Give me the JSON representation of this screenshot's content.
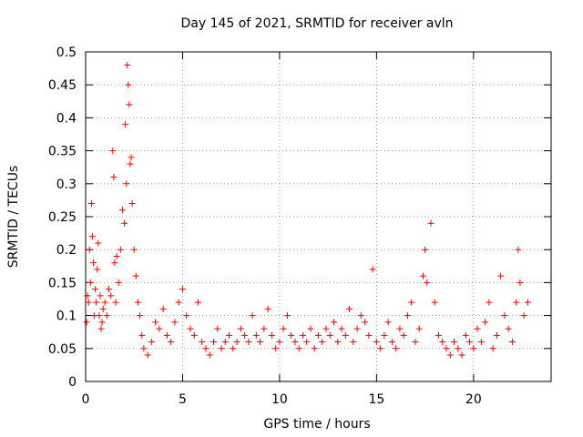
{
  "chart_data": {
    "type": "scatter",
    "title": "Day 145 of 2021, SRMTID for receiver avln",
    "xlabel": "GPS time / hours",
    "ylabel": "SRMTID / TECUs",
    "xlim": [
      0,
      24
    ],
    "ylim": [
      0,
      0.5
    ],
    "xticks": [
      0,
      5,
      10,
      15,
      20
    ],
    "xtick_labels": [
      "0",
      "5",
      "10",
      "15",
      "20"
    ],
    "yticks": [
      0,
      0.05,
      0.1,
      0.15,
      0.2,
      0.25,
      0.3,
      0.35,
      0.4,
      0.45,
      0.5
    ],
    "ytick_labels": [
      "0",
      "0.05",
      "0.1",
      "0.15",
      "0.2",
      "0.25",
      "0.3",
      "0.35",
      "0.4",
      "0.45",
      "0.5"
    ],
    "grid": true,
    "marker": "+",
    "series": [
      {
        "name": "SRMTID",
        "color": "#ff0000",
        "x": [
          0.05,
          0.1,
          0.15,
          0.2,
          0.25,
          0.3,
          0.35,
          0.4,
          0.45,
          0.5,
          0.55,
          0.6,
          0.65,
          0.7,
          0.75,
          0.8,
          0.85,
          0.9,
          1.0,
          1.1,
          1.2,
          1.3,
          1.4,
          1.45,
          1.5,
          1.55,
          1.6,
          1.7,
          1.8,
          1.9,
          2.0,
          2.05,
          2.1,
          2.15,
          2.2,
          2.25,
          2.3,
          2.35,
          2.4,
          2.5,
          2.6,
          2.7,
          2.8,
          2.9,
          3.0,
          3.2,
          3.4,
          3.6,
          3.8,
          4.0,
          4.2,
          4.4,
          4.6,
          4.8,
          5.0,
          5.2,
          5.4,
          5.6,
          5.8,
          6.0,
          6.2,
          6.4,
          6.6,
          6.8,
          7.0,
          7.2,
          7.4,
          7.6,
          7.8,
          8.0,
          8.2,
          8.4,
          8.6,
          8.8,
          9.0,
          9.2,
          9.4,
          9.6,
          9.8,
          10.0,
          10.2,
          10.4,
          10.6,
          10.8,
          11.0,
          11.2,
          11.4,
          11.6,
          11.8,
          12.0,
          12.2,
          12.4,
          12.6,
          12.8,
          13.0,
          13.2,
          13.4,
          13.6,
          13.8,
          14.0,
          14.2,
          14.4,
          14.6,
          14.8,
          15.0,
          15.2,
          15.4,
          15.6,
          15.8,
          16.0,
          16.2,
          16.4,
          16.6,
          16.8,
          17.0,
          17.2,
          17.4,
          17.5,
          17.6,
          17.8,
          18.0,
          18.2,
          18.4,
          18.6,
          18.8,
          19.0,
          19.2,
          19.4,
          19.6,
          19.8,
          20.0,
          20.2,
          20.4,
          20.6,
          20.8,
          21.0,
          21.2,
          21.4,
          21.6,
          21.8,
          22.0,
          22.2,
          22.3,
          22.4,
          22.6,
          22.8
        ],
        "y": [
          0.09,
          0.13,
          0.12,
          0.2,
          0.15,
          0.27,
          0.22,
          0.18,
          0.1,
          0.14,
          0.12,
          0.17,
          0.21,
          0.1,
          0.13,
          0.08,
          0.09,
          0.11,
          0.12,
          0.1,
          0.14,
          0.13,
          0.35,
          0.31,
          0.18,
          0.12,
          0.19,
          0.15,
          0.2,
          0.26,
          0.24,
          0.39,
          0.3,
          0.48,
          0.45,
          0.42,
          0.33,
          0.34,
          0.27,
          0.2,
          0.16,
          0.12,
          0.1,
          0.07,
          0.05,
          0.04,
          0.06,
          0.09,
          0.08,
          0.11,
          0.07,
          0.06,
          0.09,
          0.12,
          0.14,
          0.1,
          0.08,
          0.07,
          0.12,
          0.06,
          0.05,
          0.04,
          0.06,
          0.08,
          0.05,
          0.06,
          0.07,
          0.05,
          0.06,
          0.08,
          0.07,
          0.06,
          0.1,
          0.07,
          0.06,
          0.08,
          0.11,
          0.07,
          0.05,
          0.06,
          0.08,
          0.1,
          0.07,
          0.06,
          0.05,
          0.07,
          0.06,
          0.08,
          0.05,
          0.07,
          0.06,
          0.08,
          0.07,
          0.09,
          0.06,
          0.08,
          0.07,
          0.11,
          0.06,
          0.08,
          0.1,
          0.09,
          0.07,
          0.17,
          0.06,
          0.05,
          0.07,
          0.09,
          0.06,
          0.05,
          0.08,
          0.07,
          0.1,
          0.12,
          0.06,
          0.08,
          0.16,
          0.2,
          0.15,
          0.24,
          0.12,
          0.07,
          0.06,
          0.05,
          0.04,
          0.06,
          0.05,
          0.04,
          0.07,
          0.06,
          0.05,
          0.08,
          0.06,
          0.09,
          0.12,
          0.05,
          0.07,
          0.16,
          0.1,
          0.08,
          0.06,
          0.12,
          0.2,
          0.15,
          0.1,
          0.12
        ]
      }
    ]
  }
}
